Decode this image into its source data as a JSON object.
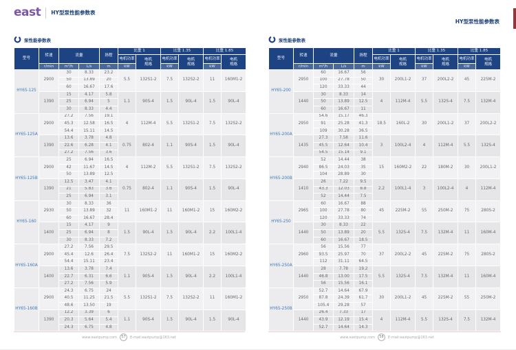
{
  "brand": {
    "logo_text": "east"
  },
  "colors": {
    "header_navy": "#1d4383",
    "subheader_blue": "#47689c",
    "logo_purple": "#7b57ab",
    "model_text_blue": "#3a79b8",
    "table_underline_pink": "#f3c6c6",
    "edge_marker_maroon": "#8e3a3a"
  },
  "shared_headers": {
    "model": "型号",
    "speed": "转速",
    "speed_unit": "r/min",
    "flow": "流量",
    "flow_units": [
      "m³/h",
      "L/s"
    ],
    "head": "扬程",
    "head_unit": "m",
    "gravity_groups": [
      "比重 1",
      "比重 1.35",
      "比重 1.85"
    ],
    "motor_power": "电机功率",
    "motor_power_unit": "kW",
    "motor_spec": "电机\n规格"
  },
  "pages": [
    {
      "header_title": "HY型泵性能参数表",
      "section_title": "泵性能参数表",
      "footer": {
        "website": "www.eastpump.com",
        "page_number": "57",
        "email": "E-mail:eastpump@163.net"
      },
      "models": [
        {
          "model": "HY65-125",
          "groups": [
            {
              "speed": "2900",
              "rows": [
                [
                  "30",
                  "8.33",
                  "23.2"
                ],
                [
                  "50",
                  "13.89",
                  "20"
                ],
                [
                  "60",
                  "16.67",
                  "17.6"
                ]
              ],
              "motors": [
                "5.5",
                "132S1-2",
                "7.5",
                "132S2-2",
                "11",
                "160M1-2"
              ]
            },
            {
              "speed": "1390",
              "rows": [
                [
                  "15",
                  "4.17",
                  "5.8"
                ],
                [
                  "25",
                  "6.94",
                  "5"
                ],
                [
                  "30",
                  "8.33",
                  "4.4"
                ]
              ],
              "motors": [
                "1.1",
                "90S-4",
                "1.5",
                "90L-4",
                "1.5",
                "90L-4"
              ]
            }
          ]
        },
        {
          "model": "HY65-125A",
          "groups": [
            {
              "speed": "2900",
              "rows": [
                [
                  "27.2",
                  "7.56",
                  "19.1"
                ],
                [
                  "45.3",
                  "12.58",
                  "16.5"
                ],
                [
                  "54.4",
                  "15.11",
                  "14.5"
                ]
              ],
              "motors": [
                "4",
                "112M-4",
                "5.5",
                "132S1-2",
                "7.5",
                "132S2-2"
              ]
            },
            {
              "speed": "1390",
              "rows": [
                [
                  "13.6",
                  "3.78",
                  "4.8"
                ],
                [
                  "22.6",
                  "6.28",
                  "4.1"
                ],
                [
                  "27.2",
                  "7.56",
                  "3.6"
                ]
              ],
              "motors": [
                "0.75",
                "802-4",
                "1.1",
                "90S-4",
                "1.5",
                "90L-4"
              ]
            }
          ]
        },
        {
          "model": "HY65-125B",
          "groups": [
            {
              "speed": "2900",
              "rows": [
                [
                  "25",
                  "6.94",
                  "16.5"
                ],
                [
                  "42",
                  "11.67",
                  "14.5"
                ],
                [
                  "50",
                  "13.89",
                  "12.5"
                ]
              ],
              "motors": [
                "4",
                "112M-2",
                "5.5",
                "132S1-2",
                "7.5",
                "132S2-2"
              ]
            },
            {
              "speed": "1390",
              "rows": [
                [
                  "12.5",
                  "3.47",
                  "4.1"
                ],
                [
                  "21",
                  "5.83",
                  "3.6"
                ],
                [
                  "25",
                  "6.94",
                  "3.1"
                ]
              ],
              "motors": [
                "0.75",
                "802-4",
                "1.1",
                "90S-4",
                "1.5",
                "90L-4"
              ]
            }
          ]
        },
        {
          "model": "HY65-160",
          "groups": [
            {
              "speed": "2930",
              "rows": [
                [
                  "30",
                  "8.33",
                  "36"
                ],
                [
                  "50",
                  "13.89",
                  "32"
                ],
                [
                  "60",
                  "16.67",
                  "28.4"
                ]
              ],
              "motors": [
                "11",
                "160M1-2",
                "11",
                "160M1-2",
                "15",
                "160M2-2"
              ]
            },
            {
              "speed": "1400",
              "rows": [
                [
                  "15",
                  "4.17",
                  "9"
                ],
                [
                  "25",
                  "6.94",
                  "8"
                ],
                [
                  "30",
                  "8.33",
                  "7.2"
                ]
              ],
              "motors": [
                "1.5",
                "90L-4",
                "1.5",
                "90L-4",
                "2.2",
                "100L1-4"
              ]
            }
          ]
        },
        {
          "model": "HY65-160A",
          "groups": [
            {
              "speed": "2900",
              "rows": [
                [
                  "27.2",
                  "7.56",
                  "29.5"
                ],
                [
                  "45.4",
                  "12.6",
                  "26.4"
                ],
                [
                  "54.4",
                  "15.11",
                  "23.4"
                ]
              ],
              "motors": [
                "7.5",
                "132S2-2",
                "11",
                "160M1-2",
                "15",
                "160M2-2"
              ]
            },
            {
              "speed": "1400",
              "rows": [
                [
                  "13.6",
                  "3.78",
                  "7.4"
                ],
                [
                  "22.7",
                  "6.31",
                  "6.6"
                ],
                [
                  "27.2",
                  "7.56",
                  "5.9"
                ]
              ],
              "motors": [
                "1.1",
                "90S-4",
                "1.5",
                "90L-4",
                "2.2",
                "100L1-4"
              ]
            }
          ]
        },
        {
          "model": "HY65-160B",
          "groups": [
            {
              "speed": "2900",
              "rows": [
                [
                  "24.3",
                  "6.75",
                  "24"
                ],
                [
                  "40.5",
                  "11.25",
                  "21.5"
                ],
                [
                  "48.6",
                  "13.50",
                  "19"
                ]
              ],
              "motors": [
                "5.5",
                "132S1-2",
                "7.5",
                "132S2-2",
                "11",
                "160M1-2"
              ]
            },
            {
              "speed": "1390",
              "rows": [
                [
                  "12.2",
                  "3.39",
                  "6"
                ],
                [
                  "20.3",
                  "5.64",
                  "5.4"
                ],
                [
                  "24.3",
                  "6.75",
                  "4.8"
                ]
              ],
              "motors": [
                "1.1",
                "90S-4",
                "1.5",
                "90L-4",
                "1.5",
                "90L-4"
              ]
            }
          ]
        }
      ]
    },
    {
      "header_title": "HY型泵性能参数表",
      "section_title": "泵性能参数表",
      "footer": {
        "website": "www.eastpump.com",
        "page_number": "58",
        "email": "E-mail:eastpump@163.net"
      },
      "models": [
        {
          "model": "HY65-200",
          "groups": [
            {
              "speed": "2950",
              "rows": [
                [
                  "60",
                  "16.67",
                  "56"
                ],
                [
                  "100",
                  "27.78",
                  "50"
                ],
                [
                  "120",
                  "33.33",
                  "44"
                ]
              ],
              "motors": [
                "30",
                "200L1-2",
                "37",
                "200L2-2",
                "45",
                "225M-2"
              ]
            },
            {
              "speed": "1440",
              "rows": [
                [
                  "30",
                  "8.33",
                  "14"
                ],
                [
                  "50",
                  "13.89",
                  "12.5"
                ],
                [
                  "60",
                  "16.67",
                  "11"
                ]
              ],
              "motors": [
                "4",
                "112M-4",
                "5.5",
                "132S-4",
                "7.5",
                "132M-4"
              ]
            }
          ]
        },
        {
          "model": "HY65-200A",
          "groups": [
            {
              "speed": "2950",
              "rows": [
                [
                  "54.6",
                  "15.17",
                  "46.3"
                ],
                [
                  "91",
                  "25.28",
                  "41.3"
                ],
                [
                  "109",
                  "30.28",
                  "36.5"
                ]
              ],
              "motors": [
                "18.5",
                "160L-2",
                "30",
                "200L1-2",
                "37",
                "200L2-2"
              ]
            },
            {
              "speed": "1435",
              "rows": [
                [
                  "27.3",
                  "7.58",
                  "11.6"
                ],
                [
                  "45.5",
                  "12.64",
                  "10.4"
                ],
                [
                  "54.5",
                  "15.14",
                  "9.1"
                ]
              ],
              "motors": [
                "3",
                "100L2-4",
                "4",
                "112M-4",
                "5.5",
                "132S-4"
              ]
            }
          ]
        },
        {
          "model": "HY65-200B",
          "groups": [
            {
              "speed": "2940",
              "rows": [
                [
                  "52",
                  "14.44",
                  "38"
                ],
                [
                  "86.5",
                  "24.03",
                  "35"
                ],
                [
                  "104",
                  "28.89",
                  "30"
                ]
              ],
              "motors": [
                "15",
                "160M2-2",
                "22",
                "180M-2",
                "30",
                "200L1-2"
              ]
            },
            {
              "speed": "1410",
              "rows": [
                [
                  "26",
                  "7.22",
                  "9.5"
                ],
                [
                  "43.3",
                  "12.03",
                  "8.8"
                ],
                [
                  "52",
                  "14.44",
                  "7.5"
                ]
              ],
              "motors": [
                "2.2",
                "100L1-4",
                "3",
                "100L2-4",
                "4",
                "112M-4"
              ]
            }
          ]
        },
        {
          "model": "HY65-250",
          "groups": [
            {
              "speed": "2965",
              "rows": [
                [
                  "60",
                  "16.67",
                  "88"
                ],
                [
                  "100",
                  "27.78",
                  "80"
                ],
                [
                  "120",
                  "33.33",
                  "74"
                ]
              ],
              "motors": [
                "45",
                "225M-2",
                "55",
                "250M-2",
                "75",
                "280S-2"
              ]
            },
            {
              "speed": "1440",
              "rows": [
                [
                  "30",
                  "8.33",
                  "22"
                ],
                [
                  "50",
                  "13.89",
                  "20"
                ],
                [
                  "60",
                  "16.67",
                  "18.5"
                ]
              ],
              "motors": [
                "5.5",
                "132S-4",
                "7.5",
                "132M-4",
                "11",
                "160M-4"
              ]
            }
          ]
        },
        {
          "model": "HY65-250A",
          "groups": [
            {
              "speed": "2960",
              "rows": [
                [
                  "56",
                  "15.56",
                  "77"
                ],
                [
                  "93.5",
                  "25.97",
                  "70"
                ],
                [
                  "112",
                  "31.11",
                  "64.5"
                ]
              ],
              "motors": [
                "37",
                "200L2-2",
                "45",
                "225M-2",
                "75",
                "280S-2"
              ]
            },
            {
              "speed": "1440",
              "rows": [
                [
                  "28",
                  "7.78",
                  "19.2"
                ],
                [
                  "46.8",
                  "13.00",
                  "17.5"
                ],
                [
                  "56",
                  "15.56",
                  "16.1"
                ]
              ],
              "motors": [
                "5.5",
                "132S-4",
                "7.5",
                "132M-4",
                "11",
                "160M-4"
              ]
            }
          ]
        },
        {
          "model": "HY65-250B",
          "groups": [
            {
              "speed": "2950",
              "rows": [
                [
                  "52.7",
                  "14.64",
                  "67.9"
                ],
                [
                  "87.8",
                  "24.39",
                  "61.7"
                ],
                [
                  "105.4",
                  "29.28",
                  "57"
                ]
              ],
              "motors": [
                "30",
                "200L1-2",
                "45",
                "225M-2",
                "55",
                "250M-2"
              ]
            },
            {
              "speed": "1440",
              "rows": [
                [
                  "26.4",
                  "7.33",
                  "17"
                ],
                [
                  "43.9",
                  "12.19",
                  "15.4"
                ],
                [
                  "52.7",
                  "14.64",
                  "14.3"
                ]
              ],
              "motors": [
                "4",
                "112M-4",
                "5.5",
                "132S-4",
                "7.5",
                "132M-4"
              ]
            }
          ]
        }
      ]
    }
  ]
}
